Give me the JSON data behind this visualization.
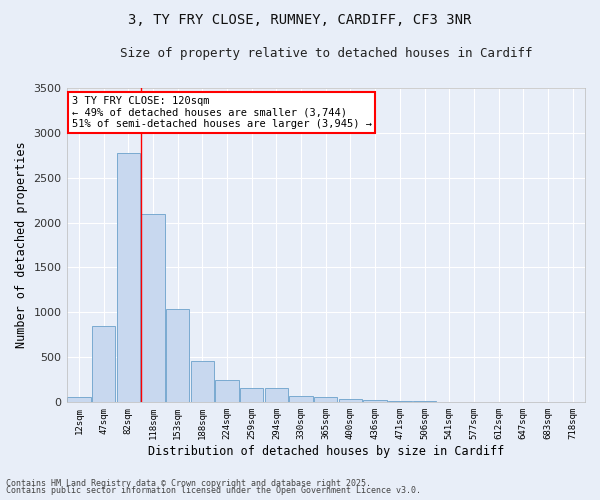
{
  "title1": "3, TY FRY CLOSE, RUMNEY, CARDIFF, CF3 3NR",
  "title2": "Size of property relative to detached houses in Cardiff",
  "xlabel": "Distribution of detached houses by size in Cardiff",
  "ylabel": "Number of detached properties",
  "categories": [
    "12sqm",
    "47sqm",
    "82sqm",
    "118sqm",
    "153sqm",
    "188sqm",
    "224sqm",
    "259sqm",
    "294sqm",
    "330sqm",
    "365sqm",
    "400sqm",
    "436sqm",
    "471sqm",
    "506sqm",
    "541sqm",
    "577sqm",
    "612sqm",
    "647sqm",
    "683sqm",
    "718sqm"
  ],
  "values": [
    55,
    850,
    2780,
    2100,
    1040,
    460,
    245,
    155,
    155,
    65,
    55,
    35,
    20,
    5,
    5,
    0,
    0,
    0,
    0,
    0,
    0
  ],
  "bar_color": "#c8d8ef",
  "bar_edge_color": "#7aaad0",
  "plot_bg_color": "#e8eef8",
  "fig_bg_color": "#e8eef8",
  "grid_color": "#ffffff",
  "annotation_text": "3 TY FRY CLOSE: 120sqm\n← 49% of detached houses are smaller (3,744)\n51% of semi-detached houses are larger (3,945) →",
  "ylim": [
    0,
    3500
  ],
  "yticks": [
    0,
    500,
    1000,
    1500,
    2000,
    2500,
    3000,
    3500
  ],
  "footer1": "Contains HM Land Registry data © Crown copyright and database right 2025.",
  "footer2": "Contains public sector information licensed under the Open Government Licence v3.0."
}
